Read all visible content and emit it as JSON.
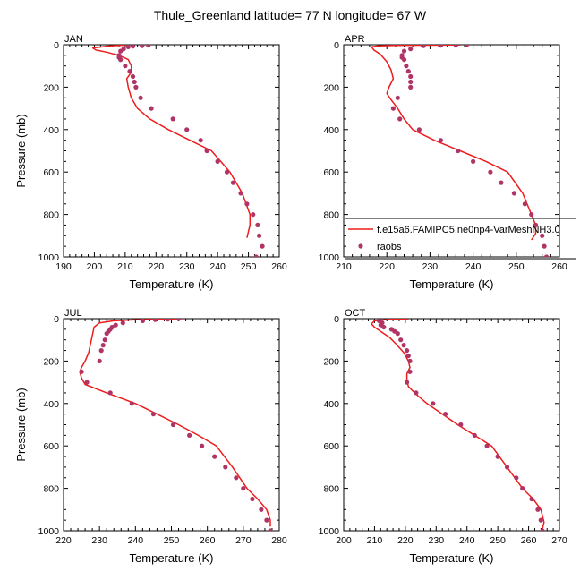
{
  "figure": {
    "title": "Thule_Greenland  latitude= 77 N longitude= 67 W",
    "xlabel": "Temperature (K)",
    "ylabel": "Pressure (mb)"
  },
  "legend": {
    "model_label": "f.e15a6.FAMIPC5.ne0np4-VarMeshNH3.0",
    "obs_label": "raobs"
  },
  "colors": {
    "model_line": "#ee1c1c",
    "obs_marker": "#b03566"
  },
  "chart_data": [
    {
      "type": "line",
      "panel": "JAN",
      "xlim": [
        190,
        260
      ],
      "ylim": [
        1000,
        0
      ],
      "xticks": [
        190,
        200,
        210,
        220,
        230,
        240,
        250,
        260
      ],
      "yticks": [
        0,
        200,
        400,
        600,
        800,
        1000
      ],
      "xlabel": "Temperature (K)",
      "ylabel": "Pressure (mb)",
      "series": [
        {
          "name": "f.e15a6.FAMIPC5.ne0np4-VarMeshNH3.0",
          "kind": "line",
          "x": [
            210,
            205,
            199.5,
            200.5,
            204,
            208,
            211,
            212,
            212,
            210.5,
            211,
            212,
            214,
            218,
            224,
            231,
            238,
            244,
            248,
            250.5,
            250.5,
            249.5
          ],
          "y": [
            2,
            5,
            15,
            25,
            35,
            50,
            70,
            100,
            130,
            160,
            200,
            250,
            300,
            350,
            400,
            450,
            500,
            600,
            700,
            800,
            850,
            910
          ]
        },
        {
          "name": "raobs",
          "kind": "scatter",
          "x": [
            217.5,
            215.5,
            212.5,
            211,
            209.5,
            208.5,
            208,
            208,
            208.5,
            210,
            211.5,
            212.5,
            213,
            213.5,
            215,
            218.5,
            225.5,
            230,
            234.5,
            236.5,
            240,
            243,
            245,
            247.5,
            249.5,
            251.5,
            253,
            253.5,
            254.5,
            252.5
          ],
          "y": [
            2,
            5,
            7,
            10,
            20,
            30,
            50,
            60,
            70,
            100,
            125,
            150,
            175,
            200,
            250,
            300,
            350,
            400,
            450,
            500,
            550,
            600,
            650,
            700,
            750,
            800,
            850,
            900,
            950,
            1000
          ]
        }
      ]
    },
    {
      "type": "line",
      "panel": "APR",
      "xlim": [
        210,
        260
      ],
      "ylim": [
        1000,
        0
      ],
      "xticks": [
        210,
        220,
        230,
        240,
        250,
        260
      ],
      "yticks": [
        0,
        200,
        400,
        600,
        800,
        1000
      ],
      "xlabel": "Temperature (K)",
      "ylabel": "",
      "series": [
        {
          "name": "f.e15a6.FAMIPC5.ne0np4-VarMeshNH3.0",
          "kind": "line",
          "x": [
            237,
            228,
            222,
            218,
            216.5,
            217,
            218.5,
            220,
            221,
            221.5,
            220.5,
            220,
            221,
            222.5,
            224,
            226,
            231,
            237,
            243,
            248,
            251.5,
            253.5,
            254.5,
            254.5,
            253.5
          ],
          "y": [
            1,
            2,
            3,
            5,
            10,
            25,
            45,
            80,
            120,
            160,
            200,
            230,
            260,
            300,
            350,
            400,
            450,
            500,
            550,
            600,
            700,
            800,
            850,
            890,
            920
          ]
        },
        {
          "name": "raobs",
          "kind": "scatter",
          "x": [
            238.5,
            236,
            232.5,
            228.5,
            225.5,
            224,
            223.5,
            223.5,
            224,
            224.5,
            225,
            225.5,
            225.5,
            225.5,
            222.5,
            221.5,
            223,
            227.5,
            232.5,
            236.5,
            240,
            244,
            246.5,
            249.5,
            252,
            253.5,
            254.5,
            256,
            256.5,
            257
          ],
          "y": [
            1,
            2,
            3,
            5,
            20,
            30,
            50,
            60,
            70,
            100,
            125,
            150,
            175,
            200,
            250,
            300,
            350,
            400,
            450,
            500,
            550,
            600,
            650,
            700,
            750,
            800,
            850,
            900,
            950,
            1000
          ]
        }
      ]
    },
    {
      "type": "line",
      "panel": "JUL",
      "xlim": [
        220,
        280
      ],
      "ylim": [
        1000,
        0
      ],
      "xticks": [
        220,
        230,
        240,
        250,
        260,
        270,
        280
      ],
      "yticks": [
        0,
        200,
        400,
        600,
        800,
        1000
      ],
      "xlabel": "Temperature (K)",
      "ylabel": "Pressure (mb)",
      "series": [
        {
          "name": "f.e15a6.FAMIPC5.ne0np4-VarMeshNH3.0",
          "kind": "line",
          "x": [
            253,
            248,
            240,
            234,
            230,
            228.5,
            228,
            227.5,
            227,
            226,
            225,
            224.5,
            225,
            226,
            232,
            240,
            246,
            252,
            257.5,
            262.5,
            267,
            271,
            274,
            276.5,
            277.5,
            277.5
          ],
          "y": [
            0,
            2,
            5,
            10,
            20,
            40,
            80,
            120,
            160,
            200,
            230,
            250,
            280,
            310,
            350,
            400,
            450,
            500,
            550,
            600,
            700,
            800,
            850,
            900,
            950,
            980
          ]
        },
        {
          "name": "raobs",
          "kind": "scatter",
          "x": [
            252,
            249,
            245.5,
            242,
            236.5,
            234.5,
            233.5,
            233,
            232.5,
            232,
            231.5,
            231,
            230.5,
            230,
            225,
            226.5,
            233,
            239,
            245,
            250.5,
            255,
            258.5,
            262,
            265,
            268,
            270,
            272.5,
            275,
            276.5,
            277.5,
            277.5
          ],
          "y": [
            1,
            3,
            5,
            10,
            20,
            30,
            40,
            50,
            60,
            70,
            100,
            125,
            150,
            200,
            250,
            300,
            350,
            400,
            450,
            500,
            550,
            600,
            650,
            700,
            750,
            800,
            850,
            900,
            950,
            1000,
            1010
          ]
        }
      ]
    },
    {
      "type": "line",
      "panel": "OCT",
      "xlim": [
        200,
        270
      ],
      "ylim": [
        1000,
        0
      ],
      "xticks": [
        200,
        210,
        220,
        230,
        240,
        250,
        260,
        270
      ],
      "yticks": [
        0,
        200,
        400,
        600,
        800,
        1000
      ],
      "xlabel": "Temperature (K)",
      "ylabel": "",
      "series": [
        {
          "name": "f.e15a6.FAMIPC5.ne0np4-VarMeshNH3.0",
          "kind": "line",
          "x": [
            221,
            215,
            210,
            209,
            210,
            212,
            215,
            217,
            219.5,
            221,
            221.5,
            220.5,
            220.5,
            221,
            223,
            227,
            232,
            237,
            242.5,
            248,
            253,
            258,
            261.5,
            264,
            265,
            264.5
          ],
          "y": [
            1,
            3,
            10,
            25,
            40,
            60,
            90,
            120,
            160,
            200,
            230,
            260,
            290,
            320,
            350,
            400,
            450,
            500,
            550,
            600,
            700,
            800,
            850,
            900,
            960,
            990
          ]
        },
        {
          "name": "raobs",
          "kind": "scatter",
          "x": [
            211.5,
            212.5,
            212,
            213,
            215.5,
            216.5,
            217.5,
            218.5,
            219.5,
            220.5,
            221,
            221.5,
            221.5,
            220.5,
            223.5,
            229,
            233,
            238,
            242.5,
            246.5,
            250,
            253,
            256,
            258,
            261,
            263,
            264,
            264.5
          ],
          "y": [
            10,
            20,
            30,
            40,
            50,
            60,
            70,
            100,
            125,
            150,
            175,
            200,
            250,
            300,
            350,
            400,
            450,
            500,
            550,
            600,
            650,
            700,
            750,
            800,
            850,
            900,
            950,
            1000
          ]
        }
      ]
    }
  ]
}
